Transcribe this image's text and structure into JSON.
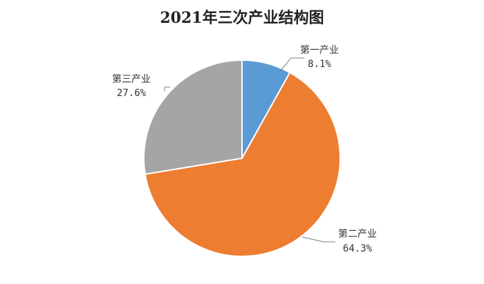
{
  "chart_data": {
    "type": "pie",
    "title": "2021年三次产业结构图",
    "categories": [
      "第一产业",
      "第二产业",
      "第三产业"
    ],
    "values": [
      8.1,
      64.3,
      27.6
    ],
    "value_labels": [
      "8.1%",
      "64.3%",
      "27.6%"
    ],
    "colors": [
      "#5b9bd5",
      "#ed7d31",
      "#a5a5a5"
    ],
    "start_angle_deg": 0,
    "direction": "clockwise",
    "legend": "none",
    "data_label_position": "outside-with-leader-lines"
  }
}
